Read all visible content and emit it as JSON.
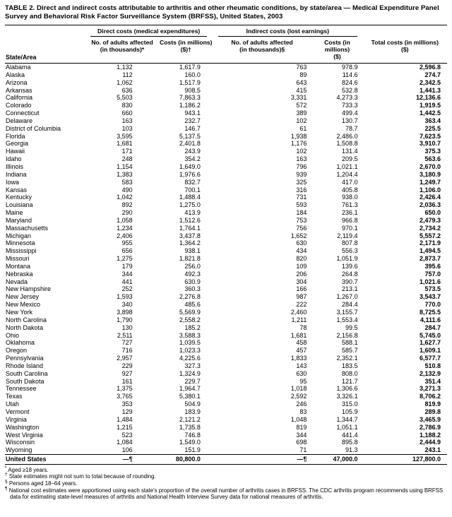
{
  "title": "TABLE 2. Direct and indirect costs attributable to arthritis and other rheumatic conditions, by state/area — Medical Expenditure Panel Survey and Behavioral Risk Factor Surveillance System (BRFSS), United States, 2003",
  "table": {
    "group_headers": {
      "direct": "Direct costs (medical expenditures)",
      "indirect": "Indirect costs (lost earnings)"
    },
    "col_headers": {
      "state": "State/Area",
      "direct_no": "No. of adults affected\n(in thousands)*",
      "direct_cost": "Costs (in millions)\n($)†",
      "indirect_no": "No. of adults affected\n(in thousands)§",
      "indirect_cost": "Costs (in millions)\n($)",
      "total": "Total costs (in millions)\n($)"
    },
    "rows": [
      [
        "Alabama",
        "1,132",
        "1,617.9",
        "763",
        "978.9",
        "2,596.8"
      ],
      [
        "Alaska",
        "112",
        "160.0",
        "89",
        "114.6",
        "274.7"
      ],
      [
        "Arizona",
        "1,062",
        "1,517.9",
        "643",
        "824.6",
        "2,342.5"
      ],
      [
        "Arkansas",
        "636",
        "908.5",
        "415",
        "532.8",
        "1,441.3"
      ],
      [
        "California",
        "5,503",
        "7,863.3",
        "3,331",
        "4,273.3",
        "12,136.6"
      ],
      [
        "Colorado",
        "830",
        "1,186.2",
        "572",
        "733.3",
        "1,919.5"
      ],
      [
        "Connecticut",
        "660",
        "943.1",
        "389",
        "499.4",
        "1,442.5"
      ],
      [
        "Delaware",
        "163",
        "232.7",
        "102",
        "130.7",
        "363.4"
      ],
      [
        "District of Columbia",
        "103",
        "146.7",
        "61",
        "78.7",
        "225.5"
      ],
      [
        "Florida",
        "3,595",
        "5,137.5",
        "1,938",
        "2,486.0",
        "7,623.5"
      ],
      [
        "Georgia",
        "1,681",
        "2,401.8",
        "1,176",
        "1,508.8",
        "3,910.7"
      ],
      [
        "Hawaii",
        "171",
        "243.9",
        "102",
        "131.4",
        "375.3"
      ],
      [
        "Idaho",
        "248",
        "354.2",
        "163",
        "209.5",
        "563.6"
      ],
      [
        "Illinois",
        "1,154",
        "1,649.0",
        "796",
        "1,021.1",
        "2,670.0"
      ],
      [
        "Indiana",
        "1,383",
        "1,976.6",
        "939",
        "1,204.4",
        "3,180.9"
      ],
      [
        "Iowa",
        "583",
        "832.7",
        "325",
        "417.0",
        "1,249.7"
      ],
      [
        "Kansas",
        "490",
        "700.1",
        "316",
        "405.8",
        "1,106.0"
      ],
      [
        "Kentucky",
        "1,042",
        "1,488.4",
        "731",
        "938.0",
        "2,426.4"
      ],
      [
        "Louisiana",
        "892",
        "1,275.0",
        "593",
        "761.3",
        "2,036.3"
      ],
      [
        "Maine",
        "290",
        "413.9",
        "184",
        "236.1",
        "650.0"
      ],
      [
        "Maryland",
        "1,058",
        "1,512.6",
        "753",
        "966.8",
        "2,479.3"
      ],
      [
        "Massachusetts",
        "1,234",
        "1,764.1",
        "756",
        "970.1",
        "2,734.2"
      ],
      [
        "Michigan",
        "2,406",
        "3,437.8",
        "1,652",
        "2,119.4",
        "5,557.2"
      ],
      [
        "Minnesota",
        "955",
        "1,364.2",
        "630",
        "807.8",
        "2,171.9"
      ],
      [
        "Mississippi",
        "656",
        "938.1",
        "434",
        "556.3",
        "1,494.5"
      ],
      [
        "Missouri",
        "1,275",
        "1,821.8",
        "820",
        "1,051.9",
        "2,873.7"
      ],
      [
        "Montana",
        "179",
        "256.0",
        "109",
        "139.6",
        "395.6"
      ],
      [
        "Nebraska",
        "344",
        "492.3",
        "206",
        "264.8",
        "757.0"
      ],
      [
        "Nevada",
        "441",
        "630.9",
        "304",
        "390.7",
        "1,021.6"
      ],
      [
        "New Hampshire",
        "252",
        "360.3",
        "166",
        "213.1",
        "573.5"
      ],
      [
        "New Jersey",
        "1,593",
        "2,276.8",
        "987",
        "1,267.0",
        "3,543.7"
      ],
      [
        "New Mexico",
        "340",
        "485.6",
        "222",
        "284.4",
        "770.0"
      ],
      [
        "New York",
        "3,898",
        "5,569.9",
        "2,460",
        "3,155.7",
        "8,725.5"
      ],
      [
        "North Carolina",
        "1,790",
        "2,558.2",
        "1,211",
        "1,553.4",
        "4,111.6"
      ],
      [
        "North Dakota",
        "130",
        "185.2",
        "78",
        "99.5",
        "284.7"
      ],
      [
        "Ohio",
        "2,511",
        "3,588.3",
        "1,681",
        "2,156.8",
        "5,745.0"
      ],
      [
        "Oklahoma",
        "727",
        "1,039.5",
        "458",
        "588.1",
        "1,627.7"
      ],
      [
        "Oregon",
        "716",
        "1,023.3",
        "457",
        "585.7",
        "1,609.1"
      ],
      [
        "Pennsylvania",
        "2,957",
        "4,225.6",
        "1,833",
        "2,352.1",
        "6,577.7"
      ],
      [
        "Rhode Island",
        "229",
        "327.3",
        "143",
        "183.5",
        "510.8"
      ],
      [
        "South Carolina",
        "927",
        "1,324.9",
        "630",
        "808.0",
        "2,132.9"
      ],
      [
        "South Dakota",
        "161",
        "229.7",
        "95",
        "121.7",
        "351.4"
      ],
      [
        "Tennessee",
        "1,375",
        "1,964.7",
        "1,018",
        "1,306.6",
        "3,271.3"
      ],
      [
        "Texas",
        "3,765",
        "5,380.1",
        "2,592",
        "3,326.1",
        "8,706.2"
      ],
      [
        "Utah",
        "353",
        "504.9",
        "246",
        "315.0",
        "819.9"
      ],
      [
        "Vermont",
        "129",
        "183.9",
        "83",
        "105.9",
        "289.8"
      ],
      [
        "Virginia",
        "1,484",
        "2,121.2",
        "1,048",
        "1,344.7",
        "3,465.9"
      ],
      [
        "Washington",
        "1,215",
        "1,735.8",
        "819",
        "1,051.1",
        "2,786.9"
      ],
      [
        "West Virginia",
        "523",
        "746.8",
        "344",
        "441.4",
        "1,188.2"
      ],
      [
        "Wisconsin",
        "1,084",
        "1,549.0",
        "698",
        "895.8",
        "2,444.9"
      ],
      [
        "Wyoming",
        "106",
        "151.9",
        "71",
        "91.3",
        "243.1"
      ]
    ],
    "total_row": [
      "United States",
      "—¶",
      "80,800.0",
      "—¶",
      "47,000.0",
      "127,800.0"
    ]
  },
  "footnotes": [
    {
      "marker": "*",
      "text": " Aged ≥18 years."
    },
    {
      "marker": "†",
      "text": " State estimates might not sum to total because of rounding."
    },
    {
      "marker": "§",
      "text": " Persons aged 18–64 years."
    },
    {
      "marker": "¶",
      "text": " National cost estimates were apportioned using each state's proportion of the overall number of arthritis cases in BRFSS. The CDC arthritis program recommends using BRFSS data for estimating state-level measures of arthritis and National Health Interview Survey data for national measures of arthritis."
    }
  ]
}
